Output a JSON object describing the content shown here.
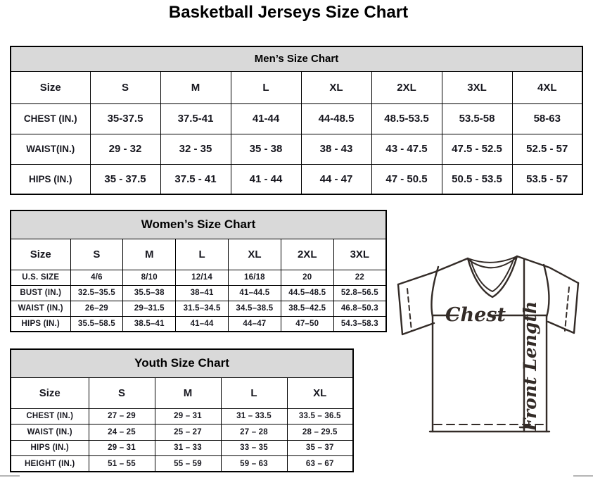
{
  "page": {
    "title": "Basketball Jerseys Size Chart"
  },
  "mens": {
    "title": "Men’s Size Chart",
    "columns": [
      "Size",
      "S",
      "M",
      "L",
      "XL",
      "2XL",
      "3XL",
      "4XL"
    ],
    "rows": [
      {
        "label": "CHEST (IN.)",
        "values": [
          "35-37.5",
          "37.5-41",
          "41-44",
          "44-48.5",
          "48.5-53.5",
          "53.5-58",
          "58-63"
        ]
      },
      {
        "label": "WAIST(IN.)",
        "values": [
          "29 - 32",
          "32 - 35",
          "35 - 38",
          "38 - 43",
          "43 - 47.5",
          "47.5 - 52.5",
          "52.5 - 57"
        ]
      },
      {
        "label": "HIPS (IN.)",
        "values": [
          "35 - 37.5",
          "37.5 - 41",
          "41 - 44",
          "44 - 47",
          "47 - 50.5",
          "50.5 - 53.5",
          "53.5 - 57"
        ]
      }
    ]
  },
  "womens": {
    "title": "Women’s Size Chart",
    "columns": [
      "Size",
      "S",
      "M",
      "L",
      "XL",
      "2XL",
      "3XL"
    ],
    "rows": [
      {
        "label": "U.S. SIZE",
        "values": [
          "4/6",
          "8/10",
          "12/14",
          "16/18",
          "20",
          "22"
        ]
      },
      {
        "label": "BUST (IN.)",
        "values": [
          "32.5–35.5",
          "35.5–38",
          "38–41",
          "41–44.5",
          "44.5–48.5",
          "52.8–56.5"
        ]
      },
      {
        "label": "WAIST (IN.)",
        "values": [
          "26–29",
          "29–31.5",
          "31.5–34.5",
          "34.5–38.5",
          "38.5–42.5",
          "46.8–50.3"
        ]
      },
      {
        "label": "HIPS (IN.)",
        "values": [
          "35.5–58.5",
          "38.5–41",
          "41–44",
          "44–47",
          "47–50",
          "54.3–58.3"
        ]
      }
    ]
  },
  "youth": {
    "title": "Youth Size Chart",
    "columns": [
      "Size",
      "S",
      "M",
      "L",
      "XL"
    ],
    "rows": [
      {
        "label": "CHEST (IN.)",
        "values": [
          "27 – 29",
          "29 – 31",
          "31 – 33.5",
          "33.5 – 36.5"
        ]
      },
      {
        "label": "WAIST (IN.)",
        "values": [
          "24 – 25",
          "25 – 27",
          "27 – 28",
          "28 – 29.5"
        ]
      },
      {
        "label": "HIPS (IN.)",
        "values": [
          "29 – 31",
          "31 – 33",
          "33 – 35",
          "35 – 37"
        ]
      },
      {
        "label": "HEIGHT (IN.)",
        "values": [
          "51 – 55",
          "55 – 59",
          "59 – 63",
          "63 – 67"
        ]
      }
    ]
  },
  "diagram": {
    "chest_label": "Chest",
    "front_length_label": "Front Length"
  },
  "colors": {
    "table_header_bg": "#d9d9d9",
    "table_border": "#000000",
    "body_text": "#17171f",
    "diagram_line": "#332b27",
    "scrollbar_gray": "#b5b5b5"
  }
}
